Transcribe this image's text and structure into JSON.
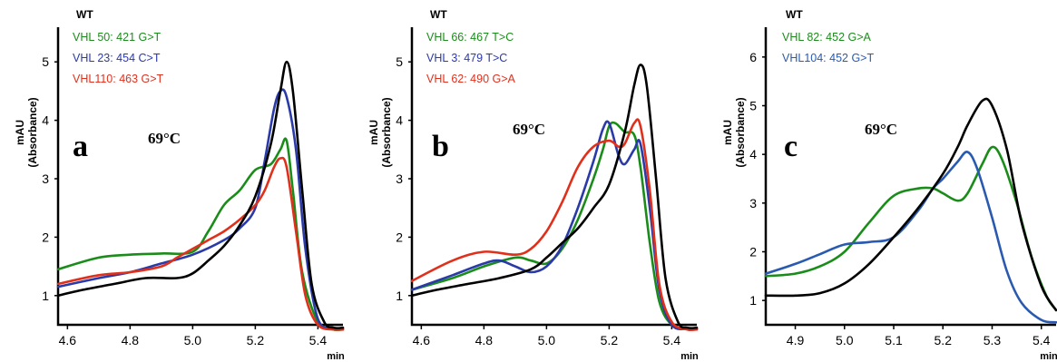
{
  "chart_data": [
    {
      "type": "line",
      "panel_letter": "a",
      "annotation": "69°C",
      "ylabel_lines": [
        "mAU",
        "(Absorbance)"
      ],
      "xunit": "min",
      "xlim": [
        4.57,
        5.48
      ],
      "ylim": [
        0.5,
        5.5
      ],
      "xticks": [
        4.6,
        4.8,
        5.0,
        5.2,
        5.4
      ],
      "xtick_labels": [
        "4.6",
        "4.8",
        "5.0",
        "5.2",
        "5.4"
      ],
      "yticks": [
        1,
        2,
        3,
        4,
        5
      ],
      "ytick_labels": [
        "1",
        "2",
        "3",
        "4",
        "5"
      ],
      "legend_title": "WT",
      "series": [
        {
          "name": "VHL 50:  421 G>T",
          "color": "#1a8c1a",
          "x": [
            4.57,
            4.7,
            4.8,
            4.9,
            5.0,
            5.05,
            5.1,
            5.15,
            5.2,
            5.25,
            5.28,
            5.3,
            5.32,
            5.35,
            5.4,
            5.45,
            5.48
          ],
          "y": [
            1.45,
            1.65,
            1.7,
            1.72,
            1.75,
            2.1,
            2.55,
            2.8,
            3.15,
            3.25,
            3.5,
            3.65,
            2.8,
            1.4,
            0.55,
            0.42,
            0.42
          ]
        },
        {
          "name": "VHL 23:  454 C>T",
          "color": "#2a3aa8",
          "x": [
            4.57,
            4.7,
            4.8,
            4.9,
            5.0,
            5.1,
            5.15,
            5.2,
            5.23,
            5.26,
            5.28,
            5.3,
            5.33,
            5.36,
            5.4,
            5.45,
            5.48
          ],
          "y": [
            1.15,
            1.3,
            1.4,
            1.55,
            1.7,
            1.95,
            2.15,
            2.5,
            3.3,
            4.2,
            4.5,
            4.4,
            3.5,
            1.8,
            0.6,
            0.45,
            0.44
          ]
        },
        {
          "name": "VHL110:  463 G>T",
          "color": "#e0301c",
          "x": [
            4.57,
            4.7,
            4.8,
            4.9,
            4.95,
            5.0,
            5.05,
            5.1,
            5.15,
            5.2,
            5.23,
            5.26,
            5.28,
            5.3,
            5.33,
            5.36,
            5.4,
            5.45,
            5.48
          ],
          "y": [
            1.2,
            1.35,
            1.4,
            1.5,
            1.65,
            1.8,
            1.95,
            2.1,
            2.3,
            2.55,
            2.8,
            3.2,
            3.35,
            3.2,
            2.1,
            1.0,
            0.5,
            0.42,
            0.42
          ]
        },
        {
          "name": "WT",
          "color": "#000000",
          "x": [
            4.57,
            4.65,
            4.75,
            4.85,
            4.95,
            5.0,
            5.05,
            5.1,
            5.15,
            5.2,
            5.25,
            5.28,
            5.3,
            5.32,
            5.35,
            5.38,
            5.42,
            5.45,
            5.48
          ],
          "y": [
            1.0,
            1.1,
            1.2,
            1.3,
            1.3,
            1.38,
            1.6,
            1.85,
            2.2,
            2.7,
            3.6,
            4.5,
            5.0,
            4.5,
            2.8,
            1.2,
            0.55,
            0.45,
            0.45
          ]
        }
      ]
    },
    {
      "type": "line",
      "panel_letter": "b",
      "annotation": "69°C",
      "ylabel_lines": [
        "mAU",
        "(Absorbance)"
      ],
      "xunit": "min",
      "xlim": [
        4.57,
        5.48
      ],
      "ylim": [
        0.5,
        5.5
      ],
      "xticks": [
        4.6,
        4.8,
        5.0,
        5.2,
        5.4
      ],
      "xtick_labels": [
        "4.6",
        "4.8",
        "5.0",
        "5.2",
        "5.4"
      ],
      "yticks": [
        1,
        2,
        3,
        4,
        5
      ],
      "ytick_labels": [
        "1",
        "2",
        "3",
        "4",
        "5"
      ],
      "legend_title": "WT",
      "series": [
        {
          "name": "VHL 66: 467 T>C",
          "color": "#1a8c1a",
          "x": [
            4.57,
            4.7,
            4.8,
            4.9,
            4.95,
            5.0,
            5.05,
            5.1,
            5.15,
            5.18,
            5.2,
            5.22,
            5.25,
            5.28,
            5.3,
            5.33,
            5.36,
            5.4,
            5.45,
            5.48
          ],
          "y": [
            1.1,
            1.3,
            1.5,
            1.65,
            1.6,
            1.55,
            1.8,
            2.3,
            3.0,
            3.5,
            3.9,
            3.95,
            3.8,
            3.75,
            3.2,
            1.9,
            0.9,
            0.5,
            0.43,
            0.43
          ]
        },
        {
          "name": "VHL 3:   479 T>C",
          "color": "#2a3aa8",
          "x": [
            4.57,
            4.7,
            4.8,
            4.85,
            4.9,
            4.95,
            5.0,
            5.05,
            5.1,
            5.15,
            5.18,
            5.2,
            5.23,
            5.25,
            5.28,
            5.3,
            5.33,
            5.36,
            5.4,
            5.45,
            5.48
          ],
          "y": [
            1.1,
            1.35,
            1.55,
            1.6,
            1.5,
            1.4,
            1.5,
            1.85,
            2.5,
            3.3,
            3.85,
            3.95,
            3.4,
            3.25,
            3.5,
            3.6,
            2.5,
            1.1,
            0.5,
            0.43,
            0.43
          ]
        },
        {
          "name": "VHL 62: 490 G>A",
          "color": "#e0301c",
          "x": [
            4.57,
            4.7,
            4.8,
            4.9,
            4.95,
            5.0,
            5.05,
            5.1,
            5.15,
            5.2,
            5.23,
            5.25,
            5.28,
            5.3,
            5.33,
            5.36,
            5.4,
            5.45,
            5.48
          ],
          "y": [
            1.25,
            1.6,
            1.75,
            1.7,
            1.8,
            2.1,
            2.6,
            3.2,
            3.55,
            3.65,
            3.55,
            3.6,
            3.95,
            3.9,
            2.8,
            1.2,
            0.55,
            0.42,
            0.42
          ]
        },
        {
          "name": "WT",
          "color": "#000000",
          "x": [
            4.57,
            4.65,
            4.75,
            4.85,
            4.95,
            5.0,
            5.05,
            5.1,
            5.15,
            5.2,
            5.25,
            5.28,
            5.3,
            5.32,
            5.35,
            5.38,
            5.42,
            5.45,
            5.48
          ],
          "y": [
            1.0,
            1.1,
            1.2,
            1.3,
            1.45,
            1.65,
            1.9,
            2.15,
            2.5,
            2.9,
            3.8,
            4.6,
            4.95,
            4.6,
            3.0,
            1.3,
            0.55,
            0.45,
            0.45
          ]
        }
      ]
    },
    {
      "type": "line",
      "panel_letter": "c",
      "annotation": "69°C",
      "ylabel_lines": [
        "mAU",
        "(Absorbance)"
      ],
      "xunit": "min",
      "xlim": [
        4.84,
        5.43
      ],
      "ylim": [
        0.5,
        6.5
      ],
      "xticks": [
        4.9,
        5.0,
        5.1,
        5.2,
        5.3,
        5.4
      ],
      "xtick_labels": [
        "4.9",
        "5.0",
        "5.1",
        "5.2",
        "5.3",
        "5.4"
      ],
      "yticks": [
        1,
        2,
        3,
        4,
        5,
        6
      ],
      "ytick_labels": [
        "1",
        "2",
        "3",
        "4",
        "5",
        "6"
      ],
      "legend_title": "WT",
      "series": [
        {
          "name": "VHL  82: 452 G>A",
          "color": "#1a8c1a",
          "x": [
            4.84,
            4.9,
            4.95,
            5.0,
            5.05,
            5.1,
            5.15,
            5.18,
            5.2,
            5.23,
            5.25,
            5.28,
            5.3,
            5.32,
            5.35,
            5.38,
            5.41,
            5.43
          ],
          "y": [
            1.5,
            1.55,
            1.7,
            2.0,
            2.6,
            3.15,
            3.3,
            3.3,
            3.2,
            3.05,
            3.2,
            3.8,
            4.15,
            3.9,
            3.0,
            1.9,
            1.1,
            0.8
          ]
        },
        {
          "name": "VHL104: 452 G>T",
          "color": "#2a5ab0",
          "x": [
            4.84,
            4.9,
            4.95,
            5.0,
            5.05,
            5.1,
            5.15,
            5.18,
            5.2,
            5.23,
            5.25,
            5.27,
            5.3,
            5.33,
            5.36,
            5.4,
            5.43
          ],
          "y": [
            1.55,
            1.75,
            1.95,
            2.15,
            2.2,
            2.3,
            2.85,
            3.3,
            3.5,
            3.85,
            4.05,
            3.7,
            2.7,
            1.6,
            0.95,
            0.6,
            0.55
          ]
        },
        {
          "name": "WT",
          "color": "#000000",
          "x": [
            4.84,
            4.9,
            4.95,
            5.0,
            5.05,
            5.1,
            5.15,
            5.2,
            5.23,
            5.25,
            5.28,
            5.3,
            5.33,
            5.36,
            5.4,
            5.43
          ],
          "y": [
            1.1,
            1.1,
            1.15,
            1.35,
            1.75,
            2.3,
            2.9,
            3.6,
            4.15,
            4.6,
            5.1,
            5.0,
            4.1,
            2.6,
            1.3,
            0.8
          ]
        }
      ]
    }
  ]
}
